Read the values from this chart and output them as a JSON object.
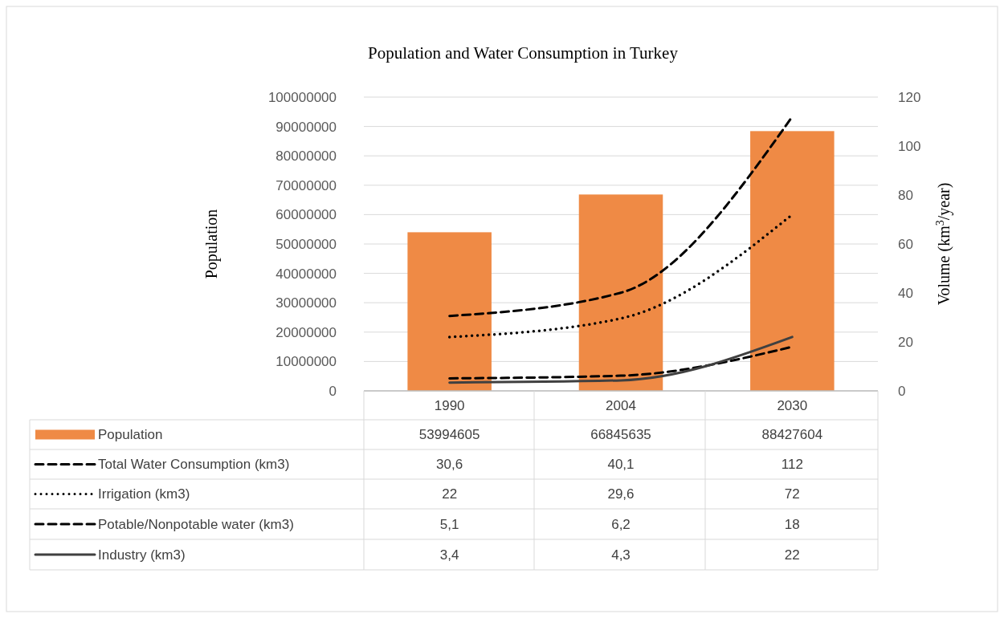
{
  "chart_data": {
    "type": "bar",
    "title": "Population and Water Consumption in Turkey",
    "ylabel": "Population",
    "y2label": "Volume (km$^{3}$/year)",
    "categories": [
      "1990",
      "2004",
      "2030"
    ],
    "series": [
      {
        "name": "Population",
        "color": "#ef8a45",
        "values": [
          53994605,
          66845635,
          88427604
        ],
        "value_labels": [
          "53994605",
          "66845635",
          "88427604"
        ]
      },
      {
        "name": "Total Water Consumption (km3)",
        "type": "line",
        "axis": "y2",
        "color": "#000000",
        "line_style": "dashed",
        "values": [
          30.6,
          40.1,
          112
        ],
        "value_labels": [
          "30,6",
          "40,1",
          "112"
        ]
      },
      {
        "name": "Irrigation (km3)",
        "type": "line",
        "axis": "y2",
        "color": "#000000",
        "line_style": "dotted",
        "values": [
          22,
          29.6,
          72
        ],
        "value_labels": [
          "22",
          "29,6",
          "72"
        ]
      },
      {
        "name": "Potable/Nonpotable water (km3)",
        "type": "line",
        "axis": "y2",
        "color": "#000000",
        "line_style": "dashed",
        "values": [
          5.1,
          6.2,
          18
        ],
        "value_labels": [
          "5,1",
          "6,2",
          "18"
        ]
      },
      {
        "name": "Industry (km3)",
        "type": "line",
        "axis": "y2",
        "color": "#404040",
        "line_style": "solid",
        "values": [
          3.4,
          4.3,
          22
        ],
        "value_labels": [
          "3,4",
          "4,3",
          "22"
        ]
      }
    ],
    "ylim": [
      0,
      100000000
    ],
    "yticks": [
      0,
      10000000,
      20000000,
      30000000,
      40000000,
      50000000,
      60000000,
      70000000,
      80000000,
      90000000,
      100000000
    ],
    "y2lim": [
      0,
      120
    ],
    "y2ticks": [
      0,
      20,
      40,
      60,
      80,
      100,
      120
    ],
    "grid": "y",
    "legend": "bottom"
  }
}
